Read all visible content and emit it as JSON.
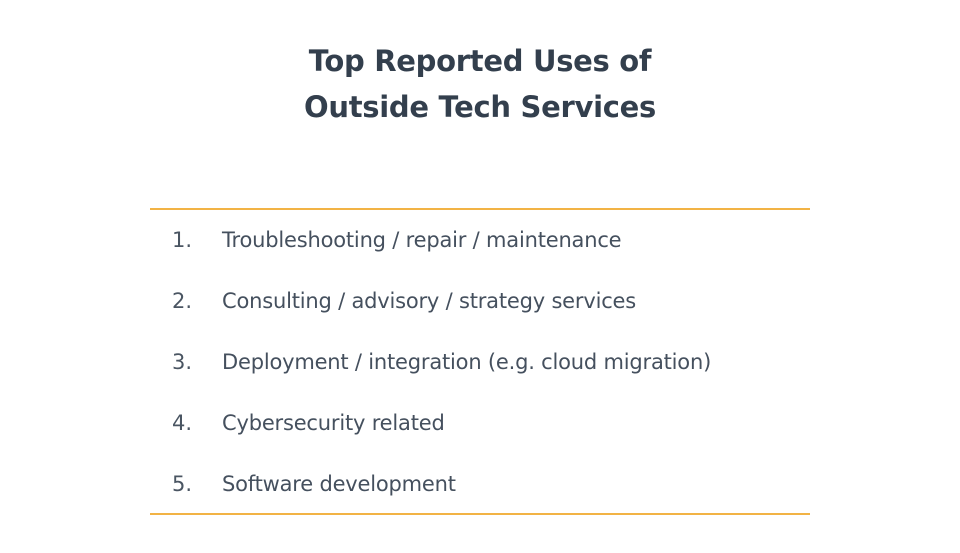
{
  "slide": {
    "title_line1": "Top Reported Uses of",
    "title_line2": "Outside Tech Services",
    "accent_color": "#f2b345",
    "text_color": "#45505e",
    "items": [
      {
        "number": "1.",
        "label": "Troubleshooting / repair / maintenance"
      },
      {
        "number": "2.",
        "label": "Consulting / advisory / strategy services"
      },
      {
        "number": "3.",
        "label": "Deployment / integration (e.g. cloud migration)"
      },
      {
        "number": "4.",
        "label": "Cybersecurity related"
      },
      {
        "number": "5.",
        "label": "Software development"
      }
    ]
  }
}
